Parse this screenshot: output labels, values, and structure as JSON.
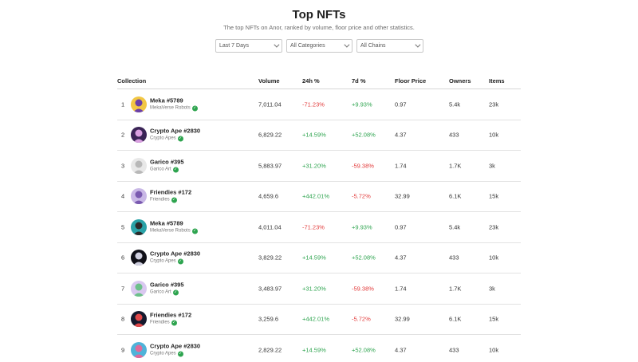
{
  "page": {
    "title": "Top NFTs",
    "subtitle": "The top NFTs on Anor, ranked by volume, floor price and other statistics."
  },
  "filters": {
    "period": "Last 7 Days",
    "category": "All Categories",
    "chain": "All Chains"
  },
  "table": {
    "headers": {
      "collection": "Collection",
      "volume": "Volume",
      "change_24h": "24h %",
      "change_7d": "7d %",
      "floor_price": "Floor Price",
      "owners": "Owners",
      "items": "Items"
    },
    "rows": [
      {
        "rank": "1",
        "name": "Meka #5789",
        "collection": "MekaVerse Robots",
        "volume": "7,011.04",
        "change_24h": "-71.23%",
        "change_7d": "+9.93%",
        "floor": "0.97",
        "owners": "5.4k",
        "items": "23k",
        "avatar_color": "#f2c744",
        "figure_color": "#6a3fa8"
      },
      {
        "rank": "2",
        "name": "Crypto Ape #2830",
        "collection": "Crypto Apes",
        "volume": "6,829.22",
        "change_24h": "+14.59%",
        "change_7d": "+52.08%",
        "floor": "4.37",
        "owners": "433",
        "items": "10k",
        "avatar_color": "#3a2456",
        "figure_color": "#d9a0e0"
      },
      {
        "rank": "3",
        "name": "Garico #395",
        "collection": "Garico Art",
        "volume": "5,883.97",
        "change_24h": "+31.20%",
        "change_7d": "-59.38%",
        "floor": "1.74",
        "owners": "1.7K",
        "items": "3k",
        "avatar_color": "#e8e8e8",
        "figure_color": "#b8b8b8"
      },
      {
        "rank": "4",
        "name": "Friendies #172",
        "collection": "Friendies",
        "volume": "4,659.6",
        "change_24h": "+442.01%",
        "change_7d": "-5.72%",
        "floor": "32.99",
        "owners": "6.1K",
        "items": "15k",
        "avatar_color": "#c9b8e6",
        "figure_color": "#7a5ab0"
      },
      {
        "rank": "5",
        "name": "Meka #5789",
        "collection": "MekaVerse Robots",
        "volume": "4,011.04",
        "change_24h": "-71.23%",
        "change_7d": "+9.93%",
        "floor": "0.97",
        "owners": "5.4k",
        "items": "23k",
        "avatar_color": "#2aa3a8",
        "figure_color": "#2b2b2b"
      },
      {
        "rank": "6",
        "name": "Crypto Ape #2830",
        "collection": "Crypto Apes",
        "volume": "3,829.22",
        "change_24h": "+14.59%",
        "change_7d": "+52.08%",
        "floor": "4.37",
        "owners": "433",
        "items": "10k",
        "avatar_color": "#101018",
        "figure_color": "#d0d0e0"
      },
      {
        "rank": "7",
        "name": "Garico #395",
        "collection": "Garico Art",
        "volume": "3,483.97",
        "change_24h": "+31.20%",
        "change_7d": "-59.38%",
        "floor": "1.74",
        "owners": "1.7K",
        "items": "3k",
        "avatar_color": "#d9c8f0",
        "figure_color": "#6cc08a"
      },
      {
        "rank": "8",
        "name": "Friendies #172",
        "collection": "Friendies",
        "volume": "3,259.6",
        "change_24h": "+442.01%",
        "change_7d": "-5.72%",
        "floor": "32.99",
        "owners": "6.1K",
        "items": "15k",
        "avatar_color": "#151a2e",
        "figure_color": "#e0484a"
      },
      {
        "rank": "9",
        "name": "Crypto Ape #2830",
        "collection": "Crypto Apes",
        "volume": "2,829.22",
        "change_24h": "+14.59%",
        "change_7d": "+52.08%",
        "floor": "4.37",
        "owners": "433",
        "items": "10k",
        "avatar_color": "#4fb3d9",
        "figure_color": "#e06a9a"
      }
    ]
  },
  "colors": {
    "positive": "#2ea44f",
    "negative": "#e23b3b",
    "verified": "#2ea44f"
  },
  "icons": {
    "dropdown": "chevron-down-icon",
    "verified": "verified-check-icon"
  }
}
